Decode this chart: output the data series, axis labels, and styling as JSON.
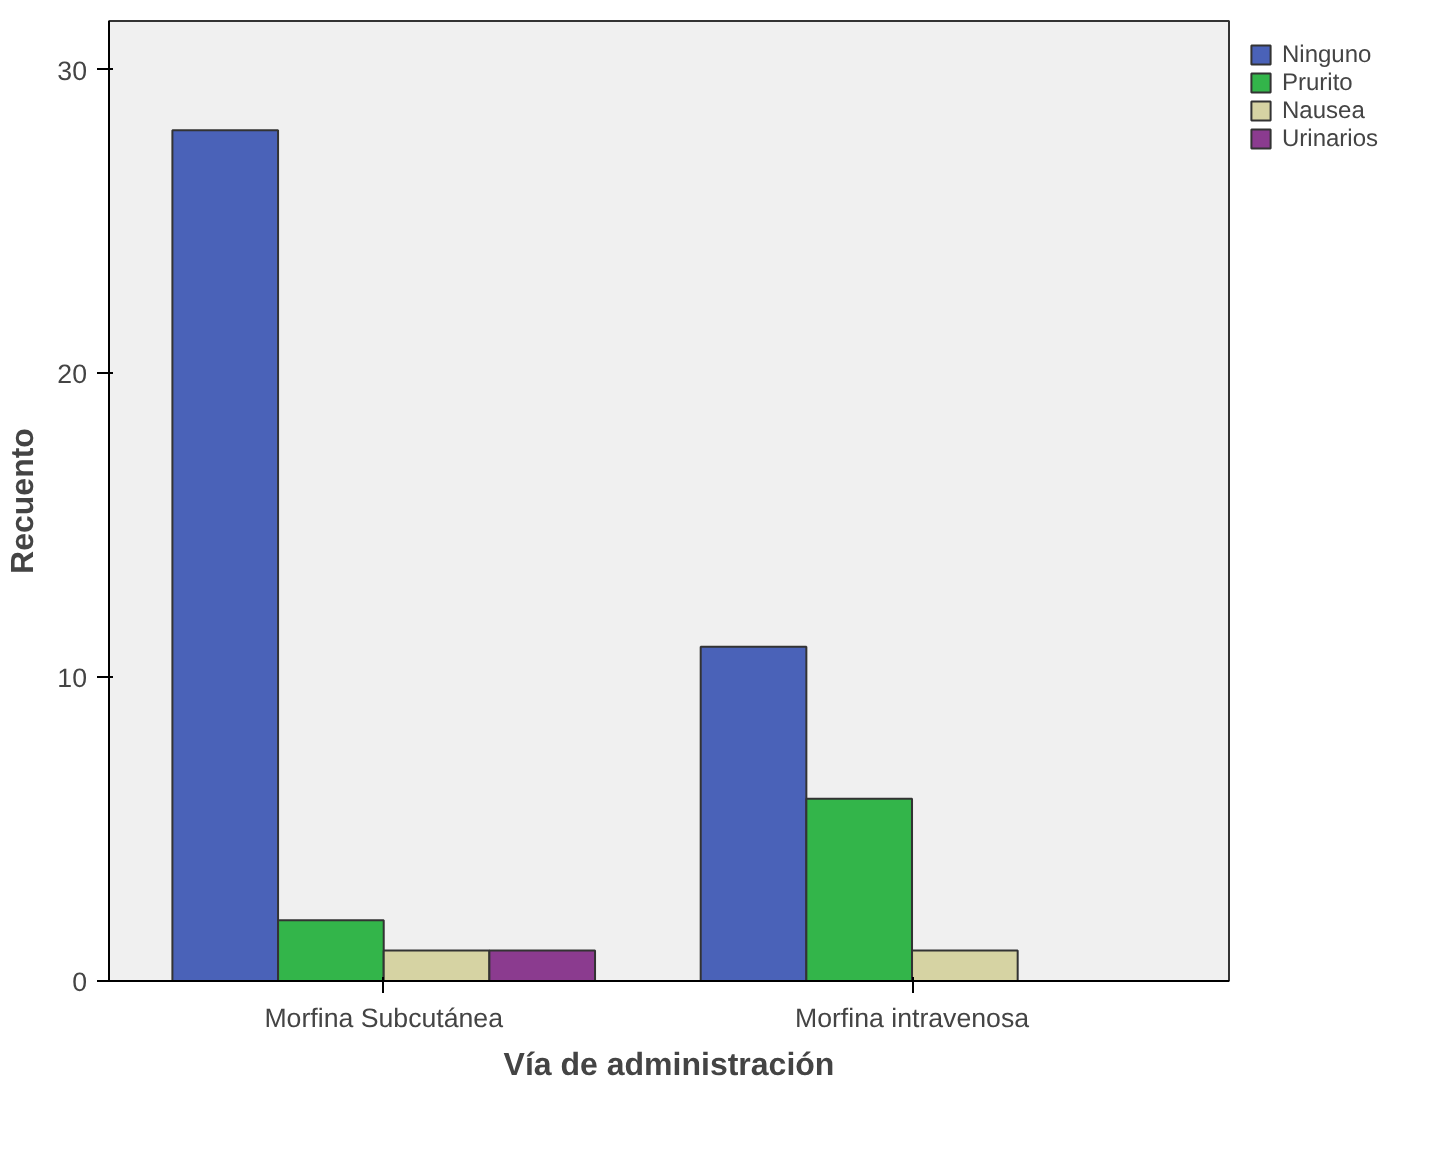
{
  "chart_data": {
    "type": "bar",
    "xlabel": "Vía de administración",
    "ylabel": "Recuento",
    "categories": [
      "Morfina Subcutánea",
      "Morfina intravenosa"
    ],
    "series": [
      {
        "name": "Ninguno",
        "color": "#4a62b8",
        "values": [
          28,
          11
        ]
      },
      {
        "name": "Prurito",
        "color": "#33b54a",
        "values": [
          2,
          6
        ]
      },
      {
        "name": "Nausea",
        "color": "#d6d3a3",
        "values": [
          1,
          1
        ]
      },
      {
        "name": "Urinarios",
        "color": "#8b3b8f",
        "values": [
          1,
          null
        ]
      }
    ],
    "ylim": [
      0,
      31.6
    ],
    "yticks": [
      0,
      10,
      20,
      30
    ],
    "grid": false,
    "legend": "top right"
  }
}
